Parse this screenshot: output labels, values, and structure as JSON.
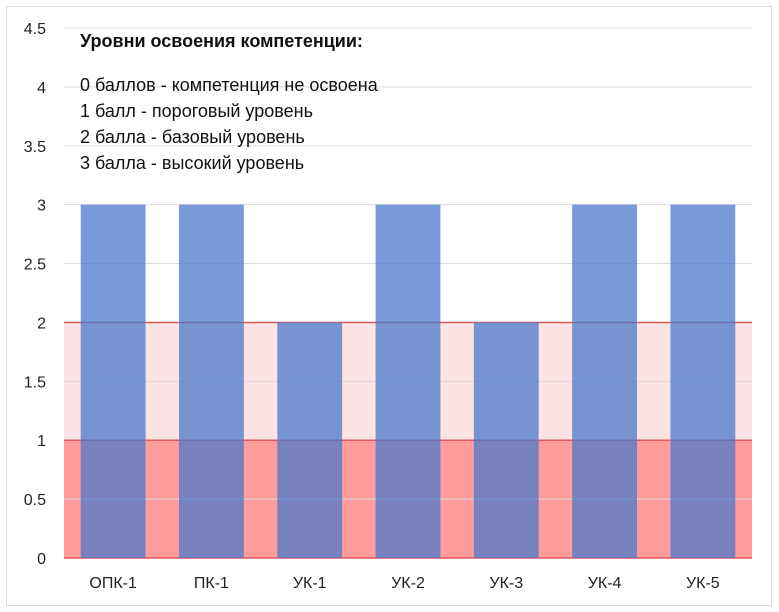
{
  "chart_data": {
    "type": "bar",
    "categories": [
      "ОПК-1",
      "ПК-1",
      "УК-1",
      "УК-2",
      "УК-3",
      "УК-4",
      "УК-5"
    ],
    "values": [
      3,
      3,
      2,
      3,
      2,
      3,
      3
    ],
    "ylim": [
      0,
      4.5
    ],
    "yticks": [
      "0",
      "0.5",
      "1",
      "1.5",
      "2",
      "2.5",
      "3",
      "3.5",
      "4",
      "4.5"
    ],
    "grid": true,
    "bands": [
      {
        "from": 0,
        "to": 1,
        "color": "#ff9c9c"
      },
      {
        "from": 1,
        "to": 2,
        "color": "#fde3e3"
      }
    ],
    "bar_color": "#4a7acb",
    "bar_opacity": 0.75,
    "gridline_color": "#d9d9d9",
    "band_line_color": "#e05a5a",
    "legend": {
      "title": "Уровни освоения компетенции:",
      "lines": [
        "0 баллов - компетенция не освоена",
        "1 балл - пороговый уровень",
        "2 балла - базовый уровень",
        "3 балла - высокий уровень"
      ]
    }
  }
}
